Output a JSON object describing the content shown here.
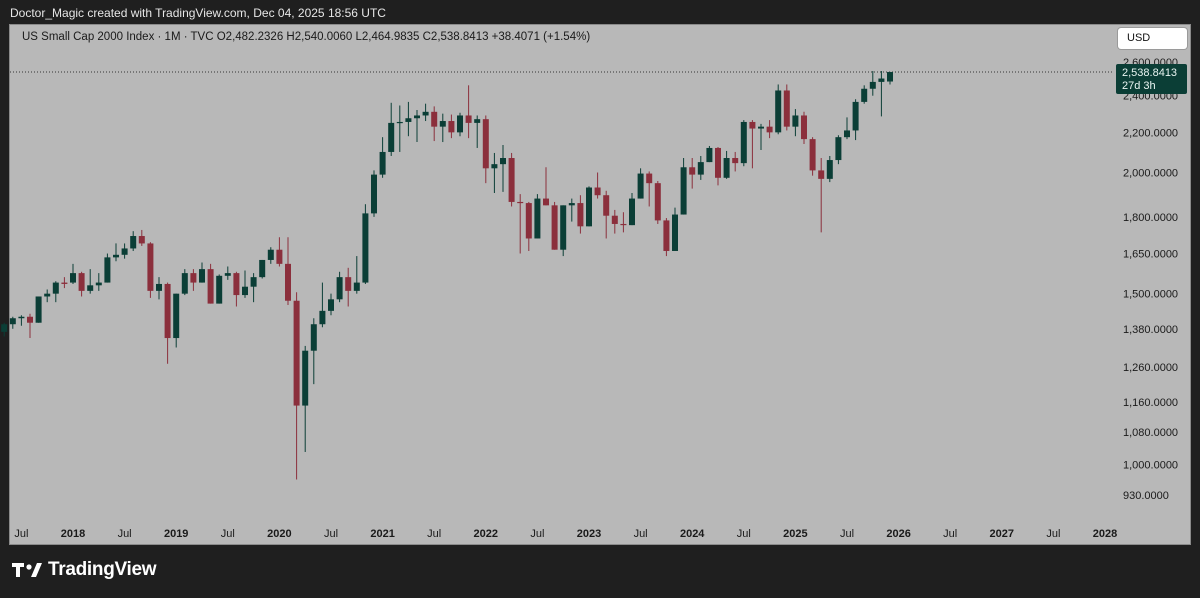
{
  "header": {
    "attribution": "Doctor_Magic created with TradingView.com, Dec 04, 2025 18:56 UTC"
  },
  "legend": {
    "text": "US Small Cap 2000 Index · 1M · TVC  O2,482.2326  H2,540.0060  L2,464.9835  C2,538.8413  +38.4071 (+1.54%)"
  },
  "currency_button": "USD",
  "last_price": {
    "value": "2,538.8413",
    "countdown": "27d 3h"
  },
  "brand": "TradingView",
  "colors": {
    "up": "#0b3e36",
    "down": "#8b2f3c",
    "background": "#b8b8b8",
    "frame": "#1f1f1f"
  },
  "chart_data": {
    "type": "candlestick",
    "symbol": "US Small Cap 2000 Index",
    "interval": "1M",
    "source": "TVC",
    "y_scale": "log",
    "y_ticks": [
      930,
      1000,
      1080,
      1160,
      1260,
      1380,
      1500,
      1650,
      1800,
      2000,
      2200,
      2400,
      2600
    ],
    "y_tick_labels": [
      "930.0000",
      "1,000.0000",
      "1,080.0000",
      "1,160.0000",
      "1,260.0000",
      "1,380.0000",
      "1,500.0000",
      "1,650.0000",
      "1,800.0000",
      "2,000.0000",
      "2,200.0000",
      "2,400.0000",
      "2,600.0000"
    ],
    "x_ticks": [
      {
        "label": "Jul",
        "month": "2017-07",
        "bold": false
      },
      {
        "label": "2018",
        "month": "2018-01",
        "bold": true
      },
      {
        "label": "Jul",
        "month": "2018-07",
        "bold": false
      },
      {
        "label": "2019",
        "month": "2019-01",
        "bold": true
      },
      {
        "label": "Jul",
        "month": "2019-07",
        "bold": false
      },
      {
        "label": "2020",
        "month": "2020-01",
        "bold": true
      },
      {
        "label": "Jul",
        "month": "2020-07",
        "bold": false
      },
      {
        "label": "2021",
        "month": "2021-01",
        "bold": true
      },
      {
        "label": "Jul",
        "month": "2021-07",
        "bold": false
      },
      {
        "label": "2022",
        "month": "2022-01",
        "bold": true
      },
      {
        "label": "Jul",
        "month": "2022-07",
        "bold": false
      },
      {
        "label": "2023",
        "month": "2023-01",
        "bold": true
      },
      {
        "label": "Jul",
        "month": "2023-07",
        "bold": false
      },
      {
        "label": "2024",
        "month": "2024-01",
        "bold": true
      },
      {
        "label": "Jul",
        "month": "2024-07",
        "bold": false
      },
      {
        "label": "2025",
        "month": "2025-01",
        "bold": true
      },
      {
        "label": "Jul",
        "month": "2025-07",
        "bold": false
      },
      {
        "label": "2026",
        "month": "2026-01",
        "bold": true
      },
      {
        "label": "Jul",
        "month": "2026-07",
        "bold": false
      },
      {
        "label": "2027",
        "month": "2027-01",
        "bold": true
      },
      {
        "label": "Jul",
        "month": "2027-07",
        "bold": false
      },
      {
        "label": "2028",
        "month": "2028-01",
        "bold": true
      }
    ],
    "candles": [
      {
        "d": "2017-05",
        "o": 1370,
        "h": 1400,
        "l": 1355,
        "c": 1395
      },
      {
        "d": "2017-06",
        "o": 1395,
        "h": 1420,
        "l": 1380,
        "c": 1415
      },
      {
        "d": "2017-07",
        "o": 1415,
        "h": 1425,
        "l": 1390,
        "c": 1420
      },
      {
        "d": "2017-08",
        "o": 1420,
        "h": 1430,
        "l": 1350,
        "c": 1400
      },
      {
        "d": "2017-09",
        "o": 1400,
        "h": 1490,
        "l": 1400,
        "c": 1490
      },
      {
        "d": "2017-10",
        "o": 1490,
        "h": 1515,
        "l": 1470,
        "c": 1500
      },
      {
        "d": "2017-11",
        "o": 1500,
        "h": 1545,
        "l": 1470,
        "c": 1540
      },
      {
        "d": "2017-12",
        "o": 1540,
        "h": 1560,
        "l": 1520,
        "c": 1535
      },
      {
        "d": "2018-01",
        "o": 1540,
        "h": 1610,
        "l": 1535,
        "c": 1575
      },
      {
        "d": "2018-02",
        "o": 1575,
        "h": 1580,
        "l": 1490,
        "c": 1510
      },
      {
        "d": "2018-03",
        "o": 1510,
        "h": 1590,
        "l": 1500,
        "c": 1530
      },
      {
        "d": "2018-04",
        "o": 1530,
        "h": 1575,
        "l": 1510,
        "c": 1540
      },
      {
        "d": "2018-05",
        "o": 1540,
        "h": 1650,
        "l": 1540,
        "c": 1635
      },
      {
        "d": "2018-06",
        "o": 1635,
        "h": 1690,
        "l": 1620,
        "c": 1645
      },
      {
        "d": "2018-07",
        "o": 1645,
        "h": 1690,
        "l": 1630,
        "c": 1670
      },
      {
        "d": "2018-08",
        "o": 1670,
        "h": 1740,
        "l": 1660,
        "c": 1720
      },
      {
        "d": "2018-09",
        "o": 1720,
        "h": 1745,
        "l": 1680,
        "c": 1690
      },
      {
        "d": "2018-10",
        "o": 1690,
        "h": 1695,
        "l": 1485,
        "c": 1510
      },
      {
        "d": "2018-11",
        "o": 1510,
        "h": 1560,
        "l": 1480,
        "c": 1535
      },
      {
        "d": "2018-12",
        "o": 1535,
        "h": 1540,
        "l": 1270,
        "c": 1350
      },
      {
        "d": "2019-01",
        "o": 1350,
        "h": 1500,
        "l": 1320,
        "c": 1500
      },
      {
        "d": "2019-02",
        "o": 1500,
        "h": 1590,
        "l": 1495,
        "c": 1575
      },
      {
        "d": "2019-03",
        "o": 1575,
        "h": 1590,
        "l": 1510,
        "c": 1540
      },
      {
        "d": "2019-04",
        "o": 1540,
        "h": 1615,
        "l": 1540,
        "c": 1590
      },
      {
        "d": "2019-05",
        "o": 1590,
        "h": 1610,
        "l": 1465,
        "c": 1465
      },
      {
        "d": "2019-06",
        "o": 1465,
        "h": 1570,
        "l": 1465,
        "c": 1565
      },
      {
        "d": "2019-07",
        "o": 1565,
        "h": 1600,
        "l": 1550,
        "c": 1575
      },
      {
        "d": "2019-08",
        "o": 1575,
        "h": 1580,
        "l": 1455,
        "c": 1495
      },
      {
        "d": "2019-09",
        "o": 1495,
        "h": 1585,
        "l": 1485,
        "c": 1525
      },
      {
        "d": "2019-10",
        "o": 1525,
        "h": 1575,
        "l": 1470,
        "c": 1560
      },
      {
        "d": "2019-11",
        "o": 1560,
        "h": 1625,
        "l": 1555,
        "c": 1625
      },
      {
        "d": "2019-12",
        "o": 1625,
        "h": 1675,
        "l": 1610,
        "c": 1665
      },
      {
        "d": "2020-01",
        "o": 1665,
        "h": 1715,
        "l": 1600,
        "c": 1610
      },
      {
        "d": "2020-02",
        "o": 1610,
        "h": 1715,
        "l": 1460,
        "c": 1475
      },
      {
        "d": "2020-03",
        "o": 1475,
        "h": 1505,
        "l": 965,
        "c": 1150
      },
      {
        "d": "2020-04",
        "o": 1150,
        "h": 1325,
        "l": 1030,
        "c": 1310
      },
      {
        "d": "2020-05",
        "o": 1310,
        "h": 1415,
        "l": 1210,
        "c": 1395
      },
      {
        "d": "2020-06",
        "o": 1395,
        "h": 1540,
        "l": 1385,
        "c": 1440
      },
      {
        "d": "2020-07",
        "o": 1440,
        "h": 1500,
        "l": 1425,
        "c": 1480
      },
      {
        "d": "2020-08",
        "o": 1480,
        "h": 1580,
        "l": 1470,
        "c": 1560
      },
      {
        "d": "2020-09",
        "o": 1560,
        "h": 1595,
        "l": 1455,
        "c": 1510
      },
      {
        "d": "2020-10",
        "o": 1510,
        "h": 1640,
        "l": 1500,
        "c": 1540
      },
      {
        "d": "2020-11",
        "o": 1540,
        "h": 1855,
        "l": 1535,
        "c": 1815
      },
      {
        "d": "2020-12",
        "o": 1815,
        "h": 2010,
        "l": 1800,
        "c": 1990
      },
      {
        "d": "2021-01",
        "o": 1990,
        "h": 2175,
        "l": 1975,
        "c": 2100
      },
      {
        "d": "2021-02",
        "o": 2100,
        "h": 2360,
        "l": 2080,
        "c": 2250
      },
      {
        "d": "2021-03",
        "o": 2250,
        "h": 2345,
        "l": 2100,
        "c": 2255
      },
      {
        "d": "2021-04",
        "o": 2255,
        "h": 2365,
        "l": 2180,
        "c": 2275
      },
      {
        "d": "2021-05",
        "o": 2275,
        "h": 2320,
        "l": 2150,
        "c": 2290
      },
      {
        "d": "2021-06",
        "o": 2290,
        "h": 2355,
        "l": 2260,
        "c": 2310
      },
      {
        "d": "2021-07",
        "o": 2310,
        "h": 2340,
        "l": 2155,
        "c": 2230
      },
      {
        "d": "2021-08",
        "o": 2230,
        "h": 2300,
        "l": 2150,
        "c": 2260
      },
      {
        "d": "2021-09",
        "o": 2260,
        "h": 2295,
        "l": 2170,
        "c": 2200
      },
      {
        "d": "2021-10",
        "o": 2200,
        "h": 2305,
        "l": 2180,
        "c": 2290
      },
      {
        "d": "2021-11",
        "o": 2290,
        "h": 2460,
        "l": 2170,
        "c": 2250
      },
      {
        "d": "2021-12",
        "o": 2250,
        "h": 2290,
        "l": 2120,
        "c": 2270
      },
      {
        "d": "2022-01",
        "o": 2270,
        "h": 2290,
        "l": 1950,
        "c": 2020
      },
      {
        "d": "2022-02",
        "o": 2020,
        "h": 2095,
        "l": 1905,
        "c": 2040
      },
      {
        "d": "2022-03",
        "o": 2040,
        "h": 2135,
        "l": 1910,
        "c": 2070
      },
      {
        "d": "2022-04",
        "o": 2070,
        "h": 2095,
        "l": 1845,
        "c": 1865
      },
      {
        "d": "2022-05",
        "o": 1865,
        "h": 1900,
        "l": 1650,
        "c": 1860
      },
      {
        "d": "2022-06",
        "o": 1860,
        "h": 1865,
        "l": 1660,
        "c": 1710
      },
      {
        "d": "2022-07",
        "o": 1710,
        "h": 1900,
        "l": 1710,
        "c": 1880
      },
      {
        "d": "2022-08",
        "o": 1880,
        "h": 2025,
        "l": 1850,
        "c": 1850
      },
      {
        "d": "2022-09",
        "o": 1850,
        "h": 1865,
        "l": 1665,
        "c": 1665
      },
      {
        "d": "2022-10",
        "o": 1665,
        "h": 1850,
        "l": 1640,
        "c": 1850
      },
      {
        "d": "2022-11",
        "o": 1850,
        "h": 1880,
        "l": 1780,
        "c": 1860
      },
      {
        "d": "2022-12",
        "o": 1860,
        "h": 1895,
        "l": 1730,
        "c": 1760
      },
      {
        "d": "2023-01",
        "o": 1760,
        "h": 1935,
        "l": 1760,
        "c": 1930
      },
      {
        "d": "2023-02",
        "o": 1930,
        "h": 2000,
        "l": 1880,
        "c": 1895
      },
      {
        "d": "2023-03",
        "o": 1895,
        "h": 1915,
        "l": 1710,
        "c": 1805
      },
      {
        "d": "2023-04",
        "o": 1805,
        "h": 1830,
        "l": 1730,
        "c": 1770
      },
      {
        "d": "2023-05",
        "o": 1770,
        "h": 1820,
        "l": 1735,
        "c": 1765
      },
      {
        "d": "2023-06",
        "o": 1765,
        "h": 1905,
        "l": 1765,
        "c": 1880
      },
      {
        "d": "2023-07",
        "o": 1880,
        "h": 2020,
        "l": 1880,
        "c": 1995
      },
      {
        "d": "2023-08",
        "o": 1995,
        "h": 2005,
        "l": 1845,
        "c": 1950
      },
      {
        "d": "2023-09",
        "o": 1950,
        "h": 1960,
        "l": 1770,
        "c": 1785
      },
      {
        "d": "2023-10",
        "o": 1785,
        "h": 1795,
        "l": 1640,
        "c": 1660
      },
      {
        "d": "2023-11",
        "o": 1660,
        "h": 1840,
        "l": 1660,
        "c": 1810
      },
      {
        "d": "2023-12",
        "o": 1810,
        "h": 2070,
        "l": 1810,
        "c": 2025
      },
      {
        "d": "2024-01",
        "o": 2025,
        "h": 2070,
        "l": 1925,
        "c": 1990
      },
      {
        "d": "2024-02",
        "o": 1990,
        "h": 2080,
        "l": 1965,
        "c": 2050
      },
      {
        "d": "2024-03",
        "o": 2050,
        "h": 2130,
        "l": 2050,
        "c": 2120
      },
      {
        "d": "2024-04",
        "o": 2120,
        "h": 2125,
        "l": 1940,
        "c": 1975
      },
      {
        "d": "2024-05",
        "o": 1975,
        "h": 2105,
        "l": 1970,
        "c": 2070
      },
      {
        "d": "2024-06",
        "o": 2070,
        "h": 2100,
        "l": 2005,
        "c": 2045
      },
      {
        "d": "2024-07",
        "o": 2045,
        "h": 2265,
        "l": 2030,
        "c": 2255
      },
      {
        "d": "2024-08",
        "o": 2255,
        "h": 2265,
        "l": 2020,
        "c": 2220
      },
      {
        "d": "2024-09",
        "o": 2220,
        "h": 2245,
        "l": 2110,
        "c": 2230
      },
      {
        "d": "2024-10",
        "o": 2230,
        "h": 2265,
        "l": 2170,
        "c": 2200
      },
      {
        "d": "2024-11",
        "o": 2200,
        "h": 2465,
        "l": 2190,
        "c": 2430
      },
      {
        "d": "2024-12",
        "o": 2430,
        "h": 2465,
        "l": 2210,
        "c": 2230
      },
      {
        "d": "2025-01",
        "o": 2230,
        "h": 2325,
        "l": 2180,
        "c": 2290
      },
      {
        "d": "2025-02",
        "o": 2290,
        "h": 2310,
        "l": 2140,
        "c": 2165
      },
      {
        "d": "2025-03",
        "o": 2165,
        "h": 2175,
        "l": 1985,
        "c": 2010
      },
      {
        "d": "2025-04",
        "o": 2010,
        "h": 2070,
        "l": 1735,
        "c": 1970
      },
      {
        "d": "2025-05",
        "o": 1970,
        "h": 2080,
        "l": 1955,
        "c": 2060
      },
      {
        "d": "2025-06",
        "o": 2060,
        "h": 2185,
        "l": 2040,
        "c": 2175
      },
      {
        "d": "2025-07",
        "o": 2175,
        "h": 2280,
        "l": 2165,
        "c": 2210
      },
      {
        "d": "2025-08",
        "o": 2210,
        "h": 2380,
        "l": 2160,
        "c": 2365
      },
      {
        "d": "2025-09",
        "o": 2365,
        "h": 2460,
        "l": 2355,
        "c": 2440
      },
      {
        "d": "2025-10",
        "o": 2440,
        "h": 2545,
        "l": 2400,
        "c": 2480
      },
      {
        "d": "2025-11",
        "o": 2480,
        "h": 2545,
        "l": 2285,
        "c": 2500
      },
      {
        "d": "2025-12",
        "o": 2482.2326,
        "h": 2540.006,
        "l": 2464.9835,
        "c": 2538.8413
      }
    ]
  }
}
